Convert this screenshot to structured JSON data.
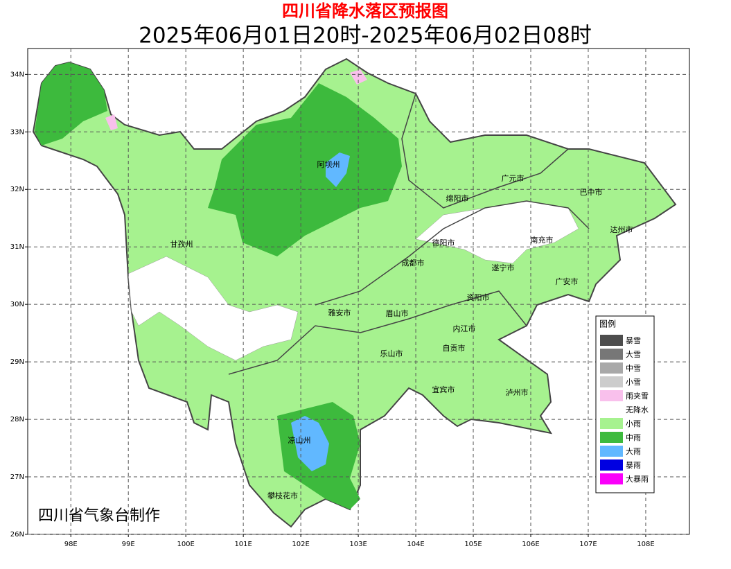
{
  "map": {
    "title": "四川省降水落区预报图",
    "subtitle": "2025年06月01日20时-2025年06月02日08时",
    "credit": "四川省气象台制作",
    "xlim": [
      97.25,
      108.76
    ],
    "ylim": [
      26,
      34.45
    ],
    "lon_ticks": [
      {
        "value": 98,
        "label": "98E"
      },
      {
        "value": 99,
        "label": "99E"
      },
      {
        "value": 100,
        "label": "100E"
      },
      {
        "value": 101,
        "label": "101E"
      },
      {
        "value": 102,
        "label": "102E"
      },
      {
        "value": 103,
        "label": "103E"
      },
      {
        "value": 104,
        "label": "104E"
      },
      {
        "value": 105,
        "label": "105E"
      },
      {
        "value": 106,
        "label": "106E"
      },
      {
        "value": 107,
        "label": "107E"
      },
      {
        "value": 108,
        "label": "108E"
      }
    ],
    "lat_ticks": [
      {
        "value": 26,
        "label": "26N"
      },
      {
        "value": 27,
        "label": "27N"
      },
      {
        "value": 28,
        "label": "28N"
      },
      {
        "value": 29,
        "label": "29N"
      },
      {
        "value": 30,
        "label": "30N"
      },
      {
        "value": 31,
        "label": "31N"
      },
      {
        "value": 32,
        "label": "32N"
      },
      {
        "value": 33,
        "label": "33N"
      },
      {
        "value": 34,
        "label": "34N"
      }
    ],
    "grid": true,
    "cities": [
      "阿坝州",
      "广元市",
      "巴中市",
      "绵阳市",
      "达州市",
      "甘孜州",
      "德阳市",
      "南充市",
      "成都市",
      "遂宁市",
      "广安市",
      "资阳市",
      "雅安市",
      "眉山市",
      "内江市",
      "自贡市",
      "乐山市",
      "宜宾市",
      "泸州市",
      "凉山州",
      "攀枝花市"
    ],
    "legend": {
      "title": "图例",
      "items": [
        {
          "name": "暴雪",
          "color": "#4d4d4d"
        },
        {
          "name": "大雪",
          "color": "#777777"
        },
        {
          "name": "中雪",
          "color": "#a8a8a8"
        },
        {
          "name": "小雪",
          "color": "#cccccc"
        },
        {
          "name": "雨夹雪",
          "color": "#f9c0ec"
        },
        {
          "name": "无降水",
          "color": "#ffffff"
        },
        {
          "name": "小雨",
          "color": "#a6f28f"
        },
        {
          "name": "中雨",
          "color": "#3dba3d"
        },
        {
          "name": "大雨",
          "color": "#61b8ff"
        },
        {
          "name": "暴雨",
          "color": "#0000e1"
        },
        {
          "name": "大暴雨",
          "color": "#fa00fa"
        }
      ]
    }
  }
}
